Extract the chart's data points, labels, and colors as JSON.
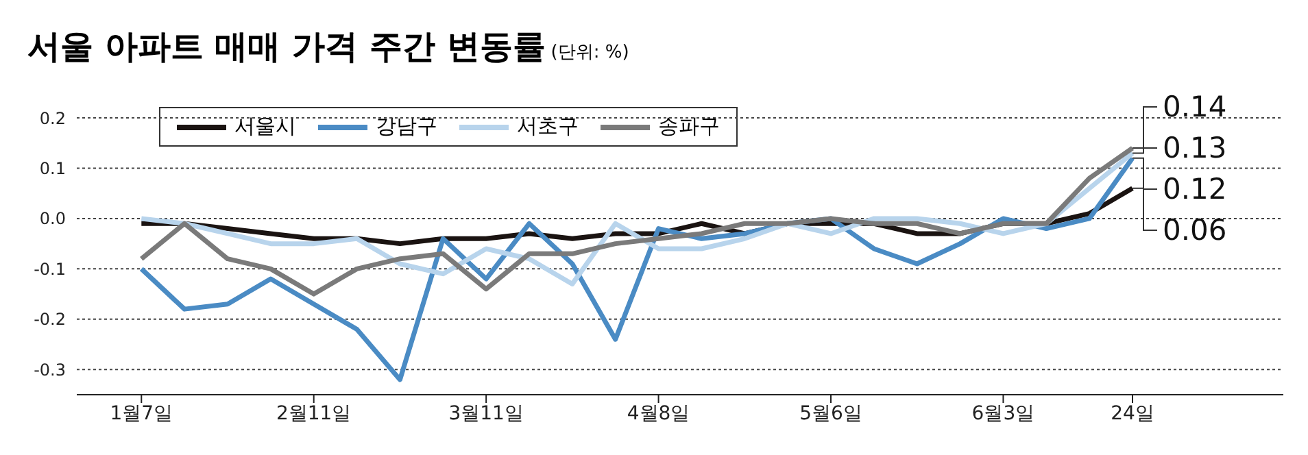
{
  "chart_data": {
    "type": "line",
    "title": "서울 아파트 매매 가격 주간 변동률",
    "subtitle": "(단위: %)",
    "categories": [
      "1월7일",
      null,
      null,
      null,
      "2월11일",
      null,
      null,
      null,
      "3월11일",
      null,
      null,
      null,
      "4월8일",
      null,
      null,
      null,
      "5월6일",
      null,
      null,
      null,
      "6월3일",
      null,
      null,
      "24일"
    ],
    "series": [
      {
        "name": "서울시",
        "color": "#1a1311",
        "values": [
          -0.01,
          -0.01,
          -0.02,
          -0.03,
          -0.04,
          -0.04,
          -0.05,
          -0.04,
          -0.04,
          -0.03,
          -0.04,
          -0.03,
          -0.03,
          -0.01,
          -0.03,
          -0.01,
          -0.01,
          -0.01,
          -0.03,
          -0.03,
          -0.01,
          -0.01,
          0.01,
          0.06
        ]
      },
      {
        "name": "강남구",
        "color": "#4a8bc4",
        "values": [
          -0.1,
          -0.18,
          -0.17,
          -0.12,
          -0.17,
          -0.22,
          -0.32,
          -0.04,
          -0.12,
          -0.01,
          -0.09,
          -0.24,
          -0.02,
          -0.04,
          -0.03,
          -0.01,
          0.0,
          -0.06,
          -0.09,
          -0.05,
          0.0,
          -0.02,
          0.0,
          0.12
        ]
      },
      {
        "name": "서초구",
        "color": "#b8d4ec",
        "values": [
          0.0,
          -0.01,
          -0.03,
          -0.05,
          -0.05,
          -0.04,
          -0.09,
          -0.11,
          -0.06,
          -0.08,
          -0.13,
          -0.01,
          -0.06,
          -0.06,
          -0.04,
          -0.01,
          -0.03,
          0.0,
          0.0,
          -0.01,
          -0.03,
          -0.01,
          0.06,
          0.13
        ]
      },
      {
        "name": "송파구",
        "color": "#7a7a7a",
        "values": [
          -0.08,
          -0.01,
          -0.08,
          -0.1,
          -0.15,
          -0.1,
          -0.08,
          -0.07,
          -0.14,
          -0.07,
          -0.07,
          -0.05,
          -0.04,
          -0.03,
          -0.01,
          -0.01,
          0.0,
          -0.01,
          -0.01,
          -0.03,
          -0.01,
          -0.01,
          0.08,
          0.14
        ]
      }
    ],
    "ylim": [
      -0.35,
      0.2
    ],
    "yticks": [
      {
        "value": 0.2,
        "label": "0.2"
      },
      {
        "value": 0.1,
        "label": "0.1"
      },
      {
        "value": 0.0,
        "label": "0.0"
      },
      -0.1,
      -0.2,
      -0.3
    ],
    "grid": "y",
    "legend": "top left",
    "marker": "none",
    "line_style": "solid",
    "annotations": [
      {
        "text": "0.14",
        "x": "24일",
        "y": 0.14
      },
      {
        "text": "0.13",
        "x": "24일",
        "y": 0.13
      },
      {
        "text": "0.12",
        "x": "24일",
        "y": 0.12
      },
      {
        "text": "0.06",
        "x": "24일",
        "y": 0.06
      }
    ]
  }
}
